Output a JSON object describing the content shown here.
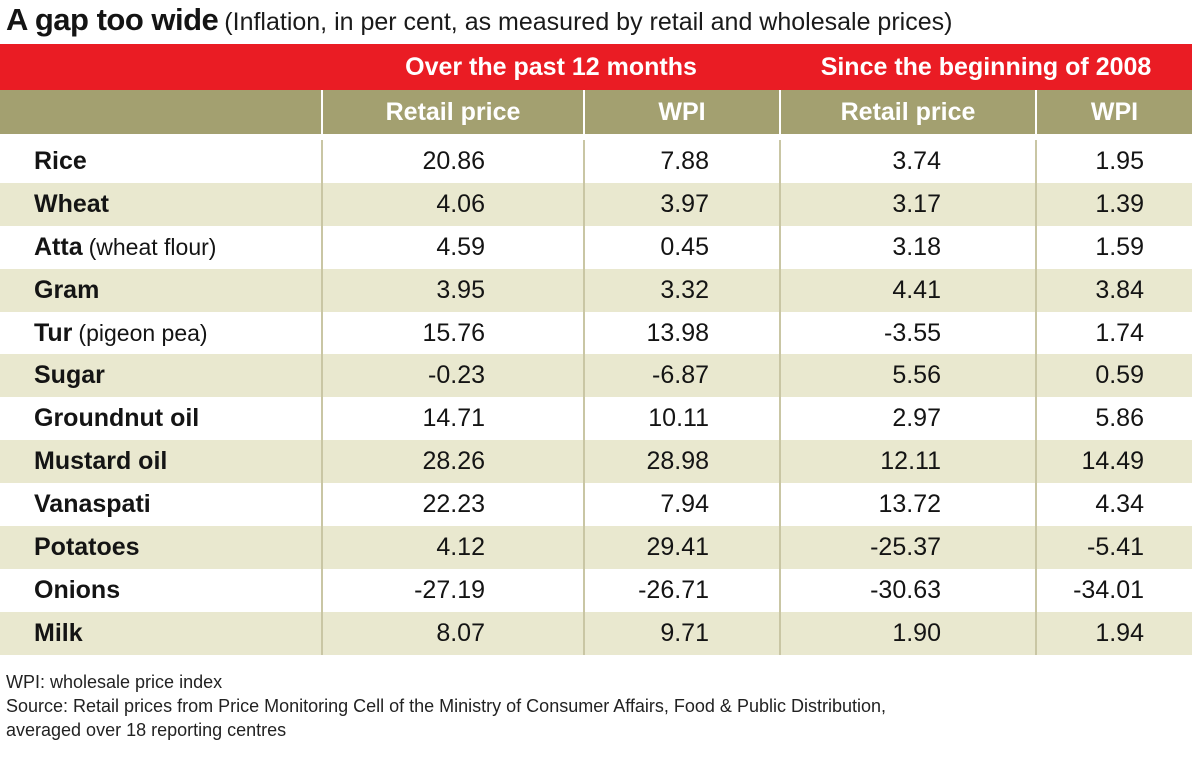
{
  "title": "A gap too wide",
  "subtitle": "(Inflation, in per cent, as measured by retail and wholesale prices)",
  "chart_data": {
    "type": "table",
    "group_headers": [
      "Over the past 12 months",
      "Since the beginning of 2008"
    ],
    "column_headers": [
      "Retail price",
      "WPI",
      "Retail price",
      "WPI"
    ],
    "rows": [
      {
        "name": "Rice",
        "note": "",
        "values": [
          "20.86",
          "7.88",
          "3.74",
          "1.95"
        ]
      },
      {
        "name": "Wheat",
        "note": "",
        "values": [
          "4.06",
          "3.97",
          "3.17",
          "1.39"
        ]
      },
      {
        "name": "Atta",
        "note": "(wheat flour)",
        "values": [
          "4.59",
          "0.45",
          "3.18",
          "1.59"
        ]
      },
      {
        "name": "Gram",
        "note": "",
        "values": [
          "3.95",
          "3.32",
          "4.41",
          "3.84"
        ]
      },
      {
        "name": "Tur",
        "note": "(pigeon pea)",
        "values": [
          "15.76",
          "13.98",
          "-3.55",
          "1.74"
        ]
      },
      {
        "name": "Sugar",
        "note": "",
        "values": [
          "-0.23",
          "-6.87",
          "5.56",
          "0.59"
        ]
      },
      {
        "name": "Groundnut oil",
        "note": "",
        "values": [
          "14.71",
          "10.11",
          "2.97",
          "5.86"
        ]
      },
      {
        "name": "Mustard oil",
        "note": "",
        "values": [
          "28.26",
          "28.98",
          "12.11",
          "14.49"
        ]
      },
      {
        "name": "Vanaspati",
        "note": "",
        "values": [
          "22.23",
          "7.94",
          "13.72",
          "4.34"
        ]
      },
      {
        "name": "Potatoes",
        "note": "",
        "values": [
          "4.12",
          "29.41",
          "-25.37",
          "-5.41"
        ]
      },
      {
        "name": "Onions",
        "note": "",
        "values": [
          "-27.19",
          "-26.71",
          "-30.63",
          "-34.01"
        ]
      },
      {
        "name": "Milk",
        "note": "",
        "values": [
          "8.07",
          "9.71",
          "1.90",
          "1.94"
        ]
      }
    ]
  },
  "footer": {
    "abbreviation": "WPI: wholesale price index",
    "source_line1": "Source: Retail prices from Price Monitoring Cell of the Ministry of Consumer Affairs, Food & Public Distribution,",
    "source_line2": "averaged over 18 reporting centres"
  },
  "colors": {
    "header_red": "#ea1c24",
    "header_olive": "#a3a070",
    "row_stripe": "#e9e8cf"
  }
}
